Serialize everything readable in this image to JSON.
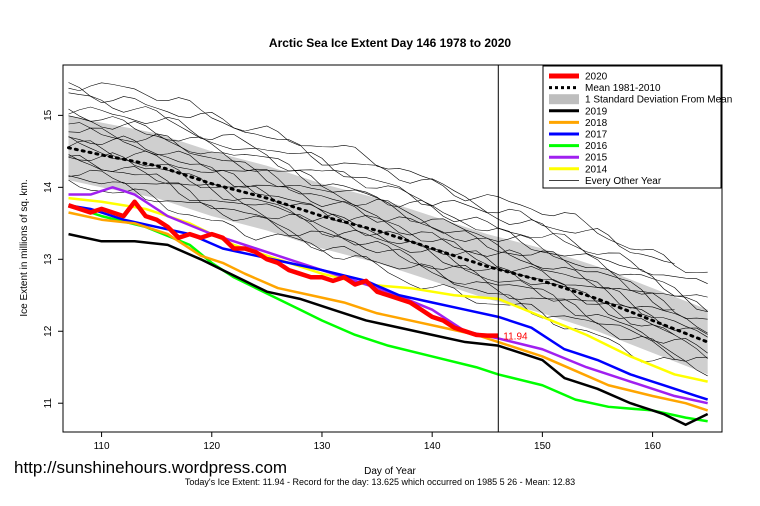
{
  "chart_data": {
    "type": "line",
    "title": "Arctic Sea Ice Extent Day 146 1978 to 2020",
    "xlabel": "Day of Year",
    "ylabel": "Ice Extent in millions of sq. km.",
    "xlim": [
      106.5,
      166.3
    ],
    "ylim": [
      10.6,
      15.7
    ],
    "x_ticks": [
      110,
      120,
      130,
      140,
      150,
      160
    ],
    "y_ticks": [
      11,
      12,
      13,
      14,
      15
    ],
    "grid": false,
    "legend_position": "top-right",
    "vertical_marker_day": 146,
    "current_value_label": "11.94",
    "legend": [
      {
        "label": "2020",
        "color": "#ff0000",
        "style": "thick"
      },
      {
        "label": "Mean 1981-2010",
        "color": "#000000",
        "style": "dotted"
      },
      {
        "label": "1 Standard Deviation From Mean",
        "color": "#bebebe",
        "style": "band"
      },
      {
        "label": "2019",
        "color": "#000000",
        "style": "solid"
      },
      {
        "label": "2018",
        "color": "#ffa500",
        "style": "solid"
      },
      {
        "label": "2017",
        "color": "#0000ff",
        "style": "solid"
      },
      {
        "label": "2016",
        "color": "#00ff00",
        "style": "solid"
      },
      {
        "label": "2015",
        "color": "#a020f0",
        "style": "solid"
      },
      {
        "label": "2014",
        "color": "#ffff00",
        "style": "solid"
      },
      {
        "label": "Every Other Year",
        "color": "#000000",
        "style": "thin"
      }
    ],
    "mean": {
      "name": "Mean 1981-2010",
      "x": [
        107,
        110,
        115,
        120,
        125,
        130,
        135,
        140,
        145,
        150,
        155,
        160,
        165
      ],
      "y": [
        14.55,
        14.45,
        14.3,
        14.05,
        13.85,
        13.6,
        13.4,
        13.15,
        12.9,
        12.7,
        12.45,
        12.15,
        11.85
      ]
    },
    "std_band": {
      "x": [
        107,
        110,
        115,
        120,
        125,
        130,
        135,
        140,
        145,
        150,
        155,
        160,
        165
      ],
      "upper": [
        15.0,
        14.9,
        14.75,
        14.5,
        14.3,
        14.05,
        13.85,
        13.6,
        13.35,
        13.15,
        12.9,
        12.6,
        12.3
      ],
      "lower": [
        14.1,
        14.0,
        13.85,
        13.6,
        13.4,
        13.15,
        12.95,
        12.7,
        12.45,
        12.25,
        12.0,
        11.7,
        11.4
      ]
    },
    "series": [
      {
        "name": "2014",
        "color": "#ffff00",
        "width": 2.5,
        "x": [
          107,
          110,
          114,
          118,
          122,
          126,
          130,
          134,
          138,
          142,
          146,
          150,
          154,
          158,
          162,
          165
        ],
        "y": [
          13.85,
          13.8,
          13.7,
          13.5,
          13.2,
          13.0,
          12.8,
          12.65,
          12.6,
          12.5,
          12.45,
          12.2,
          11.95,
          11.65,
          11.4,
          11.3
        ]
      },
      {
        "name": "2015",
        "color": "#a020f0",
        "width": 2.5,
        "x": [
          107,
          109,
          111,
          113,
          116,
          120,
          124,
          128,
          132,
          136,
          140,
          143,
          146,
          150,
          154,
          158,
          162,
          165
        ],
        "y": [
          13.9,
          13.9,
          14.0,
          13.9,
          13.6,
          13.35,
          13.15,
          12.95,
          12.75,
          12.55,
          12.3,
          12.0,
          11.9,
          11.75,
          11.5,
          11.3,
          11.1,
          11.0
        ]
      },
      {
        "name": "2016",
        "color": "#00ff00",
        "width": 2.5,
        "x": [
          107,
          110,
          114,
          118,
          120,
          122,
          124,
          126,
          128,
          130,
          133,
          136,
          140,
          144,
          146,
          150,
          153,
          156,
          160,
          163,
          165
        ],
        "y": [
          13.75,
          13.6,
          13.45,
          13.2,
          12.95,
          12.75,
          12.6,
          12.45,
          12.3,
          12.15,
          11.95,
          11.8,
          11.65,
          11.5,
          11.4,
          11.25,
          11.05,
          10.95,
          10.9,
          10.8,
          10.75
        ]
      },
      {
        "name": "2017",
        "color": "#0000ff",
        "width": 2.5,
        "x": [
          107,
          109,
          112,
          115,
          118,
          121,
          124,
          127,
          130,
          134,
          137,
          140,
          143,
          146,
          149,
          152,
          155,
          158,
          161,
          164,
          165
        ],
        "y": [
          13.75,
          13.7,
          13.55,
          13.45,
          13.35,
          13.15,
          13.05,
          12.95,
          12.85,
          12.7,
          12.5,
          12.4,
          12.3,
          12.2,
          12.05,
          11.75,
          11.6,
          11.4,
          11.25,
          11.1,
          11.05
        ]
      },
      {
        "name": "2018",
        "color": "#ffa500",
        "width": 2.5,
        "x": [
          107,
          110,
          113,
          116,
          119,
          121,
          123,
          126,
          129,
          132,
          135,
          138,
          141,
          144,
          146,
          150,
          153,
          156,
          160,
          163,
          165
        ],
        "y": [
          13.65,
          13.55,
          13.5,
          13.35,
          13.05,
          12.95,
          12.8,
          12.6,
          12.5,
          12.4,
          12.25,
          12.15,
          12.05,
          11.95,
          11.85,
          11.65,
          11.45,
          11.25,
          11.1,
          11.0,
          10.9
        ]
      },
      {
        "name": "2019",
        "color": "#000000",
        "width": 2.5,
        "x": [
          107,
          110,
          113,
          116,
          119,
          121,
          123,
          125,
          128,
          131,
          134,
          137,
          140,
          143,
          146,
          150,
          152,
          155,
          158,
          161,
          163,
          165
        ],
        "y": [
          13.35,
          13.25,
          13.25,
          13.2,
          13.0,
          12.85,
          12.7,
          12.55,
          12.45,
          12.3,
          12.15,
          12.05,
          11.95,
          11.85,
          11.8,
          11.6,
          11.35,
          11.2,
          11.0,
          10.85,
          10.7,
          10.85
        ]
      },
      {
        "name": "2020",
        "color": "#ff0000",
        "width": 4.5,
        "x": [
          107,
          108,
          109,
          110,
          111,
          112,
          113,
          114,
          115,
          116,
          117,
          118,
          119,
          120,
          121,
          122,
          123,
          124,
          125,
          126,
          127,
          128,
          129,
          130,
          131,
          132,
          133,
          134,
          135,
          136,
          137,
          138,
          139,
          140,
          141,
          142,
          143,
          144,
          145,
          146
        ],
        "y": [
          13.75,
          13.7,
          13.65,
          13.7,
          13.65,
          13.6,
          13.8,
          13.6,
          13.55,
          13.45,
          13.3,
          13.35,
          13.3,
          13.35,
          13.3,
          13.15,
          13.15,
          13.1,
          13.0,
          12.95,
          12.85,
          12.8,
          12.75,
          12.75,
          12.7,
          12.75,
          12.65,
          12.7,
          12.55,
          12.5,
          12.45,
          12.4,
          12.3,
          12.2,
          12.15,
          12.05,
          12.0,
          11.95,
          11.94,
          11.94
        ]
      }
    ]
  },
  "watermark": "http://sunshinehours.wordpress.com",
  "footer": "Today's Ice Extent: 11.94  - Record for the day: 13.625 which occurred on 1985 5 26  - Mean: 12.83"
}
